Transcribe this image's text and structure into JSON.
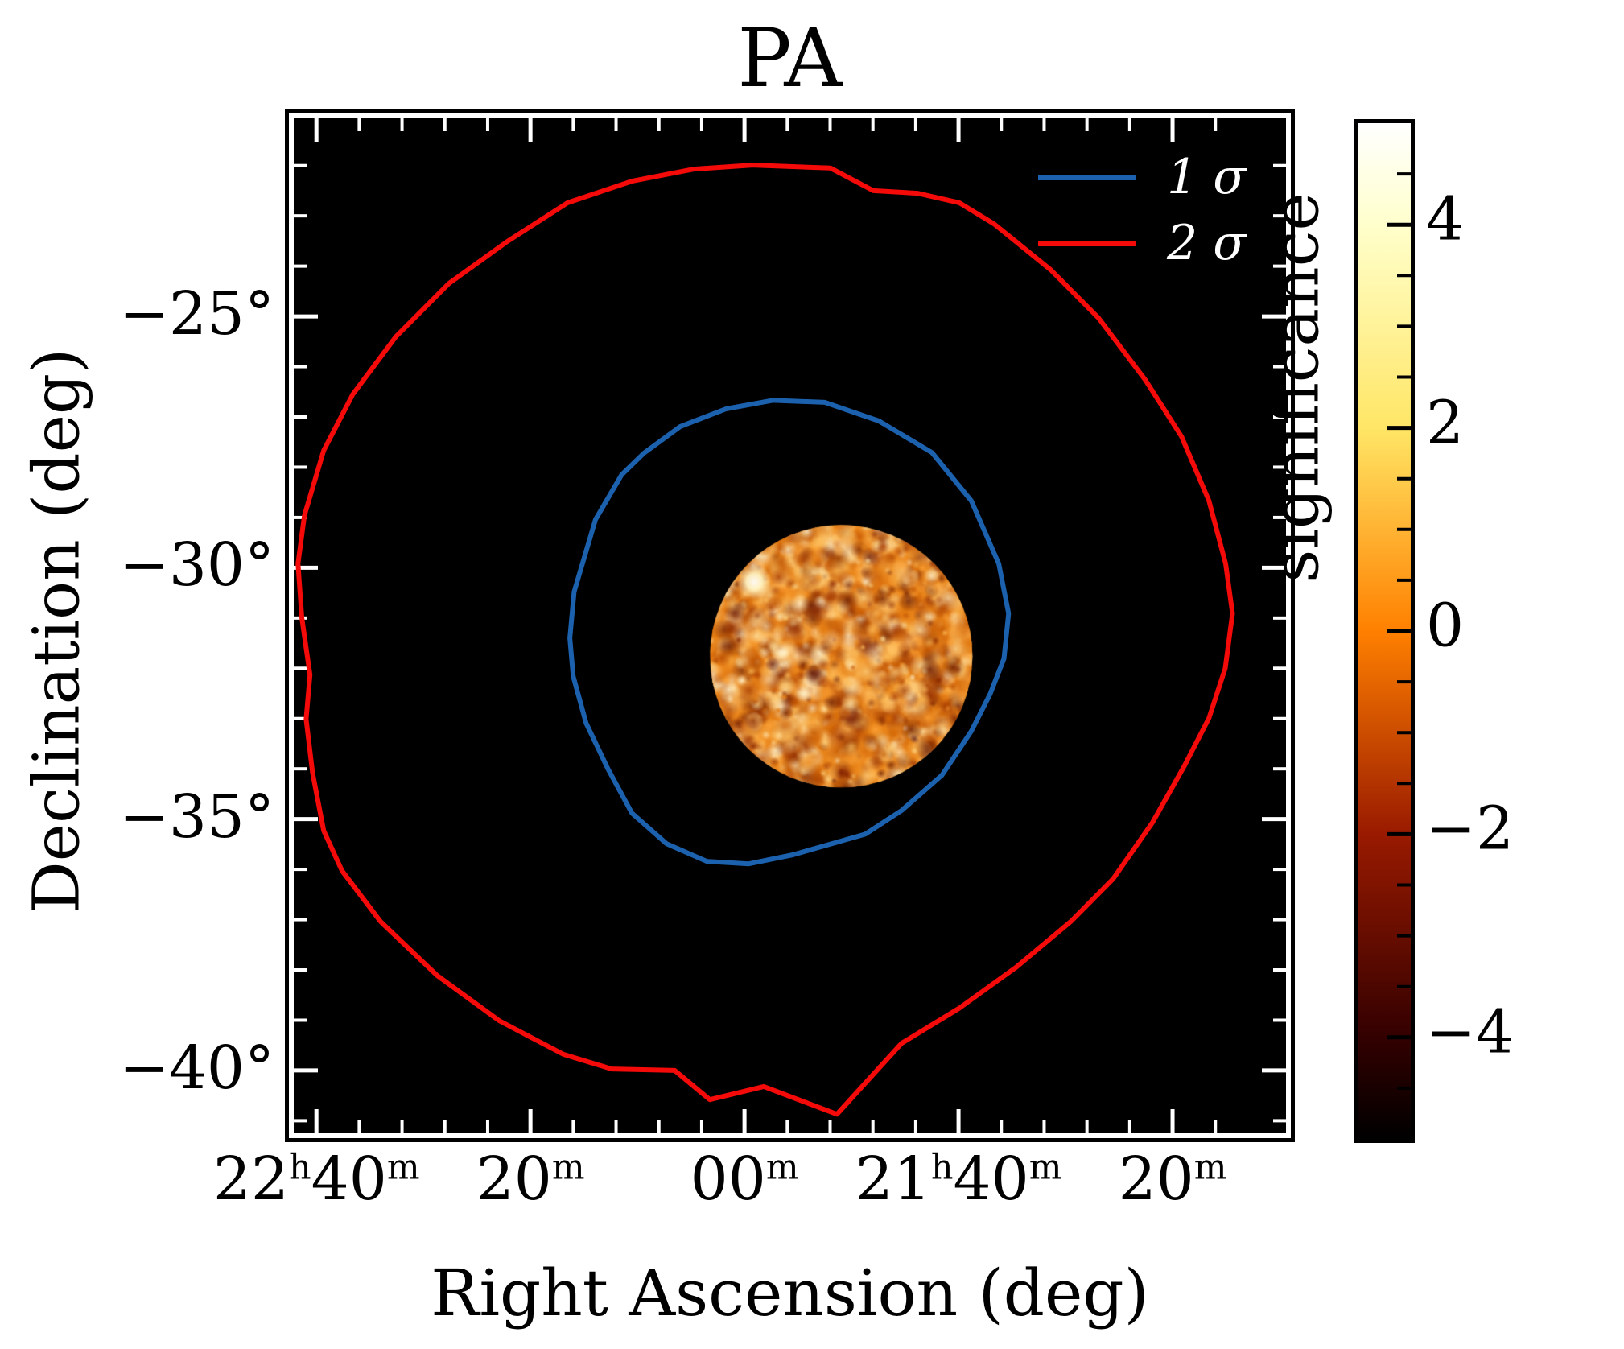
{
  "title": "PA",
  "axes": {
    "x_label": "Right Ascension (deg)",
    "y_label": "Declination (deg)",
    "x_range_deg": [
      340.53,
      317.35
    ],
    "y_range_deg": [
      -21.06,
      -41.25
    ],
    "x_major_ticks": [
      {
        "ra_deg": 340,
        "label_parts": [
          [
            "22",
            "h"
          ],
          [
            "40",
            "m"
          ]
        ]
      },
      {
        "ra_deg": 335,
        "label_parts": [
          [
            "20",
            "m"
          ]
        ]
      },
      {
        "ra_deg": 330,
        "label_parts": [
          [
            "00",
            "m"
          ]
        ]
      },
      {
        "ra_deg": 325,
        "label_parts": [
          [
            "21",
            "h"
          ],
          [
            "40",
            "m"
          ]
        ]
      },
      {
        "ra_deg": 320,
        "label_parts": [
          [
            "20",
            "m"
          ]
        ]
      }
    ],
    "x_minor_step_deg": 1,
    "y_major_ticks": [
      {
        "dec_deg": -25,
        "label": "−25°"
      },
      {
        "dec_deg": -30,
        "label": "−30°"
      },
      {
        "dec_deg": -35,
        "label": "−35°"
      },
      {
        "dec_deg": -40,
        "label": "−40°"
      }
    ],
    "y_minor_step_deg": 1,
    "frame_color": "#ffffff",
    "background_color": "#000000"
  },
  "legend": {
    "items": [
      {
        "label": "1 σ",
        "color": "#1c61ad"
      },
      {
        "label": "2 σ",
        "color": "#f50a0a"
      }
    ]
  },
  "colorbar": {
    "label": "significance",
    "vmin": -5,
    "vmax": 5,
    "major_ticks": [
      4,
      2,
      0,
      -2,
      -4
    ],
    "major_tick_labels": [
      "4",
      "2",
      "0",
      "−2",
      "−4"
    ],
    "minor_step": 0.5,
    "colormap": "afmhot",
    "gradient_stops": [
      [
        "0%",
        "#ffffff"
      ],
      [
        "10%",
        "#ffffcc"
      ],
      [
        "30%",
        "#ffe666"
      ],
      [
        "50%",
        "#ff8000"
      ],
      [
        "70%",
        "#991a00"
      ],
      [
        "90%",
        "#330000"
      ],
      [
        "100%",
        "#000000"
      ]
    ]
  },
  "chart_data": {
    "type": "heatmap",
    "title": "PA",
    "xlabel": "Right Ascension (deg)",
    "ylabel": "Declination (deg)",
    "x_range_deg": [
      340.53,
      317.35
    ],
    "y_range_deg": [
      -21.06,
      -41.25
    ],
    "value_label": "significance",
    "value_range": [
      -5,
      5
    ],
    "map_disc": {
      "center_ra_deg": 327.74,
      "center_dec_deg": -31.76,
      "radius_deg": 2.61,
      "noise_seed": 987654321,
      "bright_spot": {
        "ra_deg": 329.77,
        "dec_deg": -30.28
      },
      "palette": [
        "#5e1200",
        "#852300",
        "#a63a00",
        "#c25400",
        "#da6e06",
        "#ee8a1c",
        "#ffa63a",
        "#ffc05c",
        "#ffd786",
        "#ffe9ae",
        "#fff7d6"
      ]
    },
    "contours": [
      {
        "name": "1 σ",
        "sigma": 1,
        "color": "#1c61ad",
        "width": 6,
        "vertices_radec": [
          [
            329.34,
            -26.67
          ],
          [
            328.12,
            -26.71
          ],
          [
            326.86,
            -27.08
          ],
          [
            325.62,
            -27.71
          ],
          [
            324.7,
            -28.67
          ],
          [
            324.06,
            -29.92
          ],
          [
            323.83,
            -30.91
          ],
          [
            323.94,
            -31.81
          ],
          [
            324.26,
            -32.51
          ],
          [
            324.7,
            -33.25
          ],
          [
            325.39,
            -34.13
          ],
          [
            326.33,
            -34.83
          ],
          [
            327.18,
            -35.3
          ],
          [
            327.84,
            -35.46
          ],
          [
            328.87,
            -35.71
          ],
          [
            329.9,
            -35.89
          ],
          [
            330.88,
            -35.84
          ],
          [
            331.82,
            -35.49
          ],
          [
            332.63,
            -34.88
          ],
          [
            333.19,
            -34.0
          ],
          [
            333.7,
            -33.09
          ],
          [
            334.0,
            -32.16
          ],
          [
            334.08,
            -31.4
          ],
          [
            333.98,
            -30.48
          ],
          [
            333.48,
            -29.04
          ],
          [
            332.87,
            -28.15
          ],
          [
            332.35,
            -27.72
          ],
          [
            331.5,
            -27.19
          ],
          [
            330.43,
            -26.84
          ]
        ]
      },
      {
        "name": "2 σ",
        "sigma": 2,
        "color": "#f50a0a",
        "width": 6,
        "vertices_radec": [
          [
            329.81,
            -21.99
          ],
          [
            327.99,
            -22.05
          ],
          [
            326.99,
            -22.5
          ],
          [
            325.96,
            -22.55
          ],
          [
            324.98,
            -22.74
          ],
          [
            324.17,
            -23.16
          ],
          [
            322.85,
            -24.07
          ],
          [
            321.73,
            -25.03
          ],
          [
            320.64,
            -26.26
          ],
          [
            319.79,
            -27.39
          ],
          [
            319.15,
            -28.67
          ],
          [
            318.76,
            -29.92
          ],
          [
            318.6,
            -30.91
          ],
          [
            318.77,
            -32.0
          ],
          [
            319.15,
            -32.99
          ],
          [
            319.73,
            -33.95
          ],
          [
            320.47,
            -35.07
          ],
          [
            321.39,
            -36.19
          ],
          [
            322.38,
            -37.04
          ],
          [
            323.66,
            -37.95
          ],
          [
            324.98,
            -38.76
          ],
          [
            326.33,
            -39.46
          ],
          [
            327.84,
            -40.87
          ],
          [
            329.55,
            -40.32
          ],
          [
            330.81,
            -40.58
          ],
          [
            331.63,
            -40.0
          ],
          [
            333.1,
            -39.97
          ],
          [
            334.23,
            -39.68
          ],
          [
            335.73,
            -39.01
          ],
          [
            337.18,
            -38.11
          ],
          [
            338.5,
            -37.04
          ],
          [
            339.4,
            -36.03
          ],
          [
            339.83,
            -35.23
          ],
          [
            340.09,
            -34.08
          ],
          [
            340.24,
            -33.01
          ],
          [
            340.15,
            -32.13
          ],
          [
            340.34,
            -31.0
          ],
          [
            340.43,
            -29.92
          ],
          [
            340.28,
            -28.96
          ],
          [
            339.83,
            -27.67
          ],
          [
            339.15,
            -26.55
          ],
          [
            338.14,
            -25.4
          ],
          [
            336.9,
            -24.34
          ],
          [
            335.54,
            -23.51
          ],
          [
            334.13,
            -22.74
          ],
          [
            332.63,
            -22.31
          ],
          [
            331.18,
            -22.07
          ]
        ]
      }
    ]
  }
}
